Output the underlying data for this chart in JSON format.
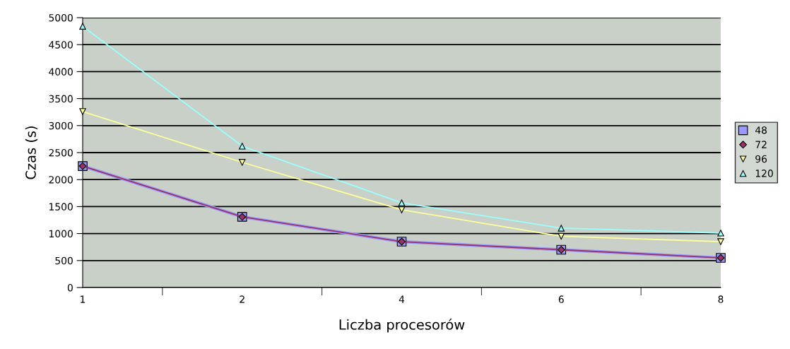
{
  "chart_data": {
    "type": "line",
    "xlabel": "Liczba procesorów",
    "ylabel": "Czas (s)",
    "categories": [
      "1",
      "2",
      "4",
      "6",
      "8"
    ],
    "series": [
      {
        "name": "48",
        "color": "#9999ff",
        "marker": "square",
        "values": [
          2250,
          1310,
          850,
          700,
          550
        ]
      },
      {
        "name": "72",
        "color": "#993366",
        "marker": "diamond",
        "values": [
          2250,
          1310,
          850,
          700,
          550
        ]
      },
      {
        "name": "96",
        "color": "#ffff99",
        "marker": "triangle_down",
        "values": [
          3260,
          2320,
          1440,
          950,
          850
        ]
      },
      {
        "name": "120",
        "color": "#99ffff",
        "marker": "triangle",
        "values": [
          4840,
          2620,
          1570,
          1100,
          1010
        ]
      }
    ],
    "ylim": [
      0,
      5000
    ],
    "yticks": [
      0,
      500,
      1000,
      1500,
      2000,
      2500,
      3000,
      3500,
      4000,
      4500,
      5000
    ],
    "grid": "y",
    "legend": "right"
  }
}
